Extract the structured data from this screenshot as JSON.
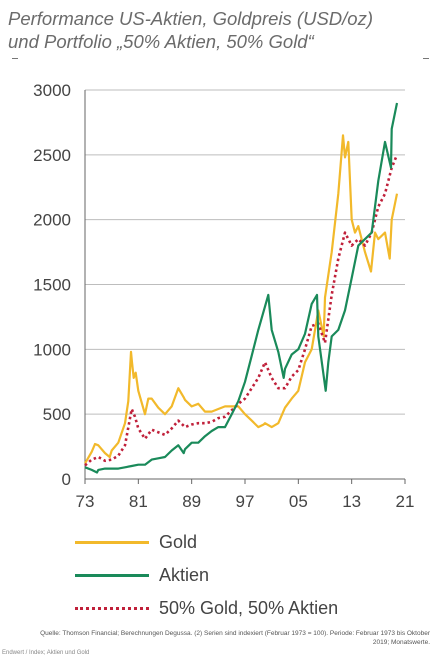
{
  "title_line1": "Performance US-Aktien, Goldpreis (USD/oz)",
  "title_line2": "und Portfolio „50% Aktien, 50% Gold“",
  "source": "Quelle: Thomson Financial; Berechnungen Degussa. (2) Serien sind indexiert (Februar 1973 = 100). Periode: Februar 1973 bis Oktober 2019; Monatswerte.",
  "footnote": "Endwert / Index; Aktien und Gold",
  "chart_data": {
    "type": "line",
    "title": "Performance US-Aktien, Goldpreis (USD/oz) und Portfolio „50% Aktien, 50% Gold“",
    "xlabel": "",
    "ylabel": "",
    "xlim": [
      1973,
      2021
    ],
    "ylim": [
      0,
      3000
    ],
    "x_ticks": [
      73,
      81,
      89,
      97,
      5,
      13,
      21
    ],
    "x_tick_labels": [
      "73",
      "81",
      "89",
      "97",
      "05",
      "13",
      "21"
    ],
    "y_ticks": [
      0,
      500,
      1000,
      1500,
      2000,
      2500,
      3000
    ],
    "y_tick_labels": [
      "0",
      "500",
      "1000",
      "1500",
      "2000",
      "2500",
      "3000"
    ],
    "grid": "horizontal",
    "legend_position": "bottom",
    "series": [
      {
        "name": "Gold",
        "color": "#f2b92b",
        "style": "solid",
        "x": [
          1973,
          1974,
          1974.5,
          1975,
          1976,
          1976.7,
          1977,
          1978,
          1979,
          1979.5,
          1979.9,
          1980.05,
          1980.3,
          1980.6,
          1981,
          1982,
          1982.5,
          1983,
          1984,
          1985,
          1986,
          1987,
          1987.8,
          1988,
          1989,
          1990,
          1991,
          1992,
          1993,
          1994,
          1995,
          1996,
          1997,
          1998,
          1999,
          1999.8,
          2000,
          2001,
          2002,
          2003,
          2004,
          2005,
          2006,
          2007,
          2008,
          2008.8,
          2009,
          2010,
          2011,
          2011.7,
          2012,
          2012.5,
          2013,
          2013.5,
          2014,
          2015,
          2015.9,
          2016.5,
          2017,
          2018,
          2018.7,
          2019,
          2019.8
        ],
        "y": [
          120,
          210,
          270,
          260,
          200,
          170,
          220,
          280,
          430,
          600,
          980,
          900,
          780,
          820,
          680,
          500,
          620,
          620,
          550,
          500,
          560,
          700,
          630,
          610,
          560,
          580,
          520,
          520,
          540,
          560,
          560,
          560,
          500,
          450,
          400,
          420,
          430,
          400,
          430,
          550,
          620,
          680,
          900,
          1000,
          1300,
          1100,
          1400,
          1750,
          2200,
          2650,
          2480,
          2600,
          2000,
          1900,
          1950,
          1750,
          1600,
          1900,
          1850,
          1900,
          1700,
          2000,
          2200
        ]
      },
      {
        "name": "Aktien",
        "color": "#1a8a5a",
        "style": "solid",
        "x": [
          1973,
          1974,
          1974.8,
          1975,
          1976,
          1977,
          1978,
          1979,
          1980,
          1981,
          1982,
          1983,
          1984,
          1985,
          1986,
          1987,
          1987.8,
          1988,
          1989,
          1990,
          1991,
          1992,
          1993,
          1994,
          1995,
          1996,
          1997,
          1998,
          1999,
          2000.5,
          2001,
          2002,
          2002.8,
          2003,
          2004,
          2005,
          2006,
          2007,
          2007.8,
          2008,
          2009.1,
          2009.5,
          2010,
          2011,
          2012,
          2013,
          2014,
          2015,
          2016,
          2017,
          2018,
          2018.9,
          2019,
          2019.8
        ],
        "y": [
          90,
          70,
          50,
          70,
          80,
          80,
          80,
          90,
          100,
          110,
          110,
          150,
          160,
          170,
          220,
          260,
          200,
          230,
          280,
          280,
          330,
          370,
          400,
          400,
          500,
          600,
          750,
          950,
          1150,
          1420,
          1150,
          980,
          780,
          850,
          960,
          1000,
          1120,
          1350,
          1420,
          1100,
          680,
          900,
          1100,
          1150,
          1300,
          1550,
          1800,
          1850,
          1900,
          2300,
          2600,
          2400,
          2700,
          2900
        ]
      },
      {
        "name": "50% Gold, 50% Aktien",
        "color": "#c0203a",
        "style": "dotted",
        "x": [
          1973,
          1974,
          1975,
          1976,
          1977,
          1978,
          1979,
          1980,
          1980.5,
          1981,
          1982,
          1983,
          1984,
          1985,
          1986,
          1987,
          1988,
          1989,
          1990,
          1991,
          1992,
          1993,
          1994,
          1995,
          1996,
          1997,
          1998,
          1999,
          2000,
          2001,
          2002,
          2003,
          2004,
          2005,
          2006,
          2007,
          2008,
          2009,
          2010,
          2011,
          2012,
          2013,
          2014,
          2015,
          2016,
          2017,
          2018,
          2019,
          2019.8
        ],
        "y": [
          105,
          150,
          170,
          140,
          150,
          180,
          260,
          540,
          480,
          390,
          310,
          380,
          360,
          340,
          390,
          450,
          400,
          420,
          430,
          430,
          440,
          470,
          480,
          530,
          580,
          620,
          700,
          780,
          900,
          780,
          700,
          700,
          790,
          840,
          1000,
          1180,
          1200,
          1050,
          1420,
          1700,
          1900,
          1800,
          1850,
          1800,
          1900,
          2100,
          2200,
          2400,
          2500
        ]
      }
    ]
  }
}
